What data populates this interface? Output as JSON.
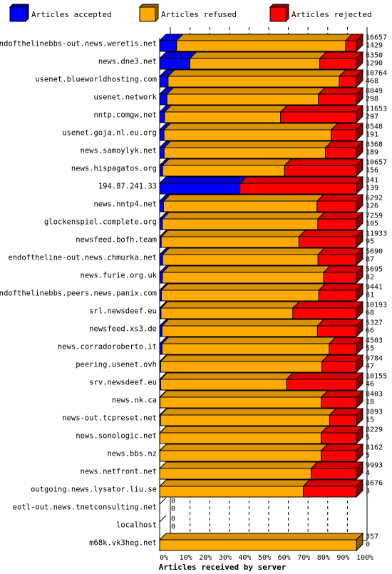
{
  "chart_data": {
    "type": "bar",
    "orientation": "horizontal",
    "stacked": true,
    "xlabel": "Articles received by server",
    "x_ticks": [
      "0%",
      "10%",
      "20%",
      "30%",
      "40%",
      "50%",
      "60%",
      "70%",
      "80%",
      "90%",
      "100%"
    ],
    "xlim": [
      0,
      100
    ],
    "legend_position": "top",
    "series": [
      {
        "name": "Articles accepted",
        "color": "#0000FF"
      },
      {
        "name": "Articles refused",
        "color": "#FFAA00"
      },
      {
        "name": "Articles rejected",
        "color": "#FF0000"
      }
    ],
    "categories": [
      "endofthelinebbs-out.news.weretis.net",
      "news.dne3.net",
      "usenet.blueworldhosting.com",
      "usenet.network",
      "nntp.comgw.net",
      "usenet.goja.nl.eu.org",
      "news.samoylyk.net",
      "news.hispagatos.org",
      "194.87.241.33",
      "news.nntp4.net",
      "glockenspiel.complete.org",
      "newsfeed.bofh.team",
      "endoftheline-out.news.chmurka.net",
      "news.furie.org.uk",
      "endofthelinebbs.peers.news.panix.com",
      "srl.newsdeef.eu",
      "newsfeed.xs3.de",
      "news.corradoroberto.it",
      "peering.usenet.ovh",
      "srv.newsdeef.eu",
      "news.nk.ca",
      "news-out.tcpreset.net",
      "news.sonologic.net",
      "news.bbs.nz",
      "news.netfront.net",
      "outgoing.news.lysator.liu.se",
      "eotl-out.news.tnetconsulting.net",
      "localhost",
      "m68k.vk3heg.net"
    ],
    "totals": [
      16657,
      8350,
      10764,
      8049,
      11653,
      8548,
      8368,
      10657,
      341,
      6292,
      7259,
      11933,
      5690,
      5695,
      9441,
      10193,
      5327,
      4503,
      9784,
      10155,
      8403,
      3893,
      8229,
      8162,
      9993,
      8676,
      0,
      0,
      357
    ],
    "accepted_counts": [
      1429,
      1290,
      468,
      298,
      297,
      191,
      189,
      156,
      139,
      126,
      105,
      95,
      87,
      82,
      81,
      68,
      66,
      55,
      47,
      46,
      18,
      15,
      5,
      5,
      4,
      3,
      0,
      0,
      0
    ],
    "accepted_pct": [
      8.6,
      15.4,
      4.3,
      3.7,
      2.5,
      2.2,
      2.3,
      1.5,
      40.8,
      2.0,
      1.4,
      0.8,
      1.5,
      1.4,
      0.9,
      0.7,
      1.2,
      1.2,
      0.5,
      0.5,
      0.2,
      0.4,
      0.1,
      0.1,
      0.0,
      0.0,
      0,
      0,
      0
    ],
    "refused_pct": [
      86.0,
      66.0,
      87.0,
      77.0,
      59.0,
      85.0,
      82.0,
      62.0,
      0.0,
      78.0,
      79.0,
      70.0,
      79.0,
      82.0,
      80.0,
      67.0,
      79.0,
      85.0,
      82.0,
      64.0,
      82.0,
      86.0,
      82.0,
      82.0,
      77.0,
      73.0,
      0,
      0,
      100.0
    ],
    "rejected_pct": [
      5.4,
      18.6,
      8.7,
      19.3,
      38.5,
      12.8,
      15.7,
      36.5,
      59.2,
      20.0,
      19.6,
      29.2,
      19.5,
      16.6,
      19.1,
      32.3,
      19.8,
      13.8,
      17.5,
      35.5,
      17.8,
      13.6,
      17.9,
      17.9,
      23.0,
      27.0,
      0,
      0,
      0.0
    ]
  }
}
